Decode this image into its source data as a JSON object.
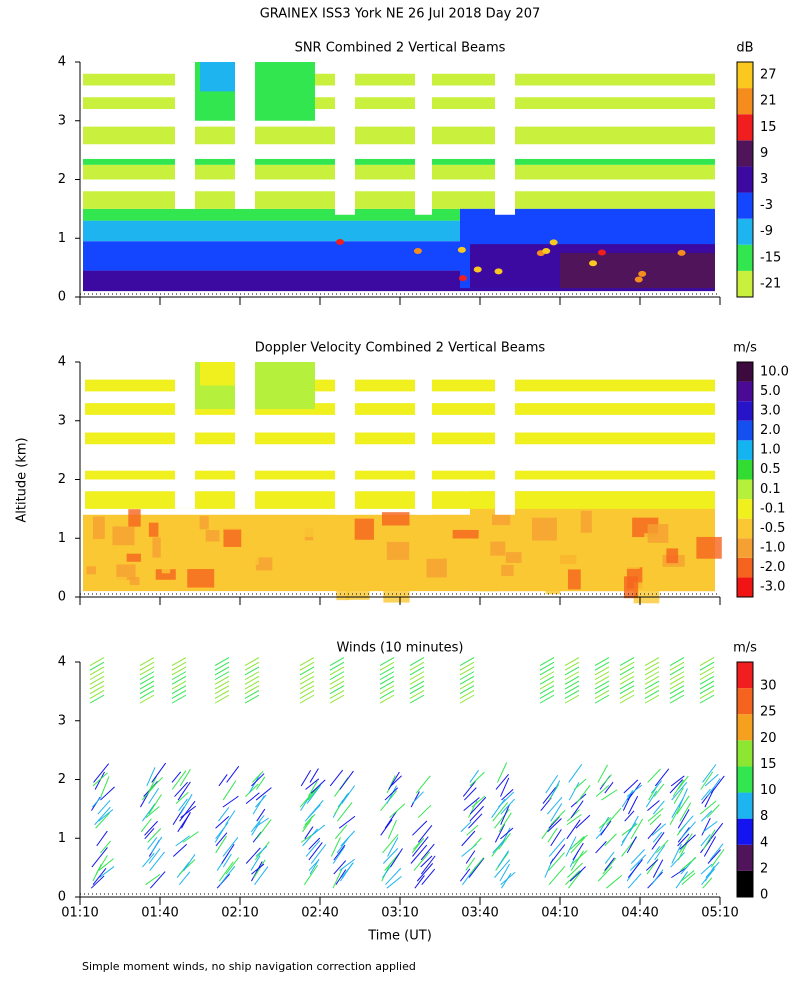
{
  "title": "GRAINEX ISS3 York NE  26 Jul 2018 Day 207",
  "y_label": "Altitude (km)",
  "x_label": "Time (UT)",
  "footnote": "Simple moment winds, no ship navigation correction applied",
  "x_ticks": [
    "01:10",
    "01:40",
    "02:10",
    "02:40",
    "03:10",
    "03:40",
    "04:10",
    "04:40",
    "05:10"
  ],
  "ylim": [
    0,
    4
  ],
  "y_ticks": [
    0,
    1,
    2,
    3,
    4
  ],
  "panels": [
    {
      "title": "SNR Combined 2 Vertical Beams",
      "unit": "dB",
      "colorbar": [
        -21,
        -15,
        -9,
        -3,
        3,
        9,
        15,
        21,
        27
      ],
      "colors": [
        "#c8f03c",
        "#32e650",
        "#1eb4f0",
        "#1446ff",
        "#3c0aa0",
        "#50145a",
        "#f01e1e",
        "#f58c1e",
        "#fac81e"
      ]
    },
    {
      "title": "Doppler Velocity Combined 2 Vertical Beams",
      "unit": "m/s",
      "colorbar": [
        {
          "value": -3,
          "label": "-3.0"
        },
        {
          "value": -2,
          "label": "-2.0"
        },
        {
          "value": -1,
          "label": "-1.0"
        },
        -0.5,
        -0.1,
        0.1,
        0.5,
        {
          "value": 1,
          "label": "1.0"
        },
        {
          "value": 2,
          "label": "2.0"
        },
        {
          "value": 3,
          "label": "3.0"
        },
        {
          "value": 5,
          "label": "5.0"
        },
        {
          "value": 10,
          "label": "10.0"
        }
      ],
      "colors": [
        "#f01414",
        "#f5641e",
        "#f5a032",
        "#fac832",
        "#f0f01e",
        "#b4f03c",
        "#32dc32",
        "#14b4f0",
        "#1450f0",
        "#2814c8",
        "#4b0a96",
        "#3c0a3c"
      ]
    },
    {
      "title": "Winds (10 minutes)",
      "unit": "m/s",
      "colorbar": [
        0,
        2,
        4,
        8,
        10,
        15,
        20,
        25,
        30
      ],
      "colors": [
        "#000000",
        "#50145a",
        "#1414f0",
        "#1eb4f0",
        "#32e650",
        "#8ce632",
        "#f5a01e",
        "#f5641e",
        "#f01e1e"
      ]
    }
  ]
}
